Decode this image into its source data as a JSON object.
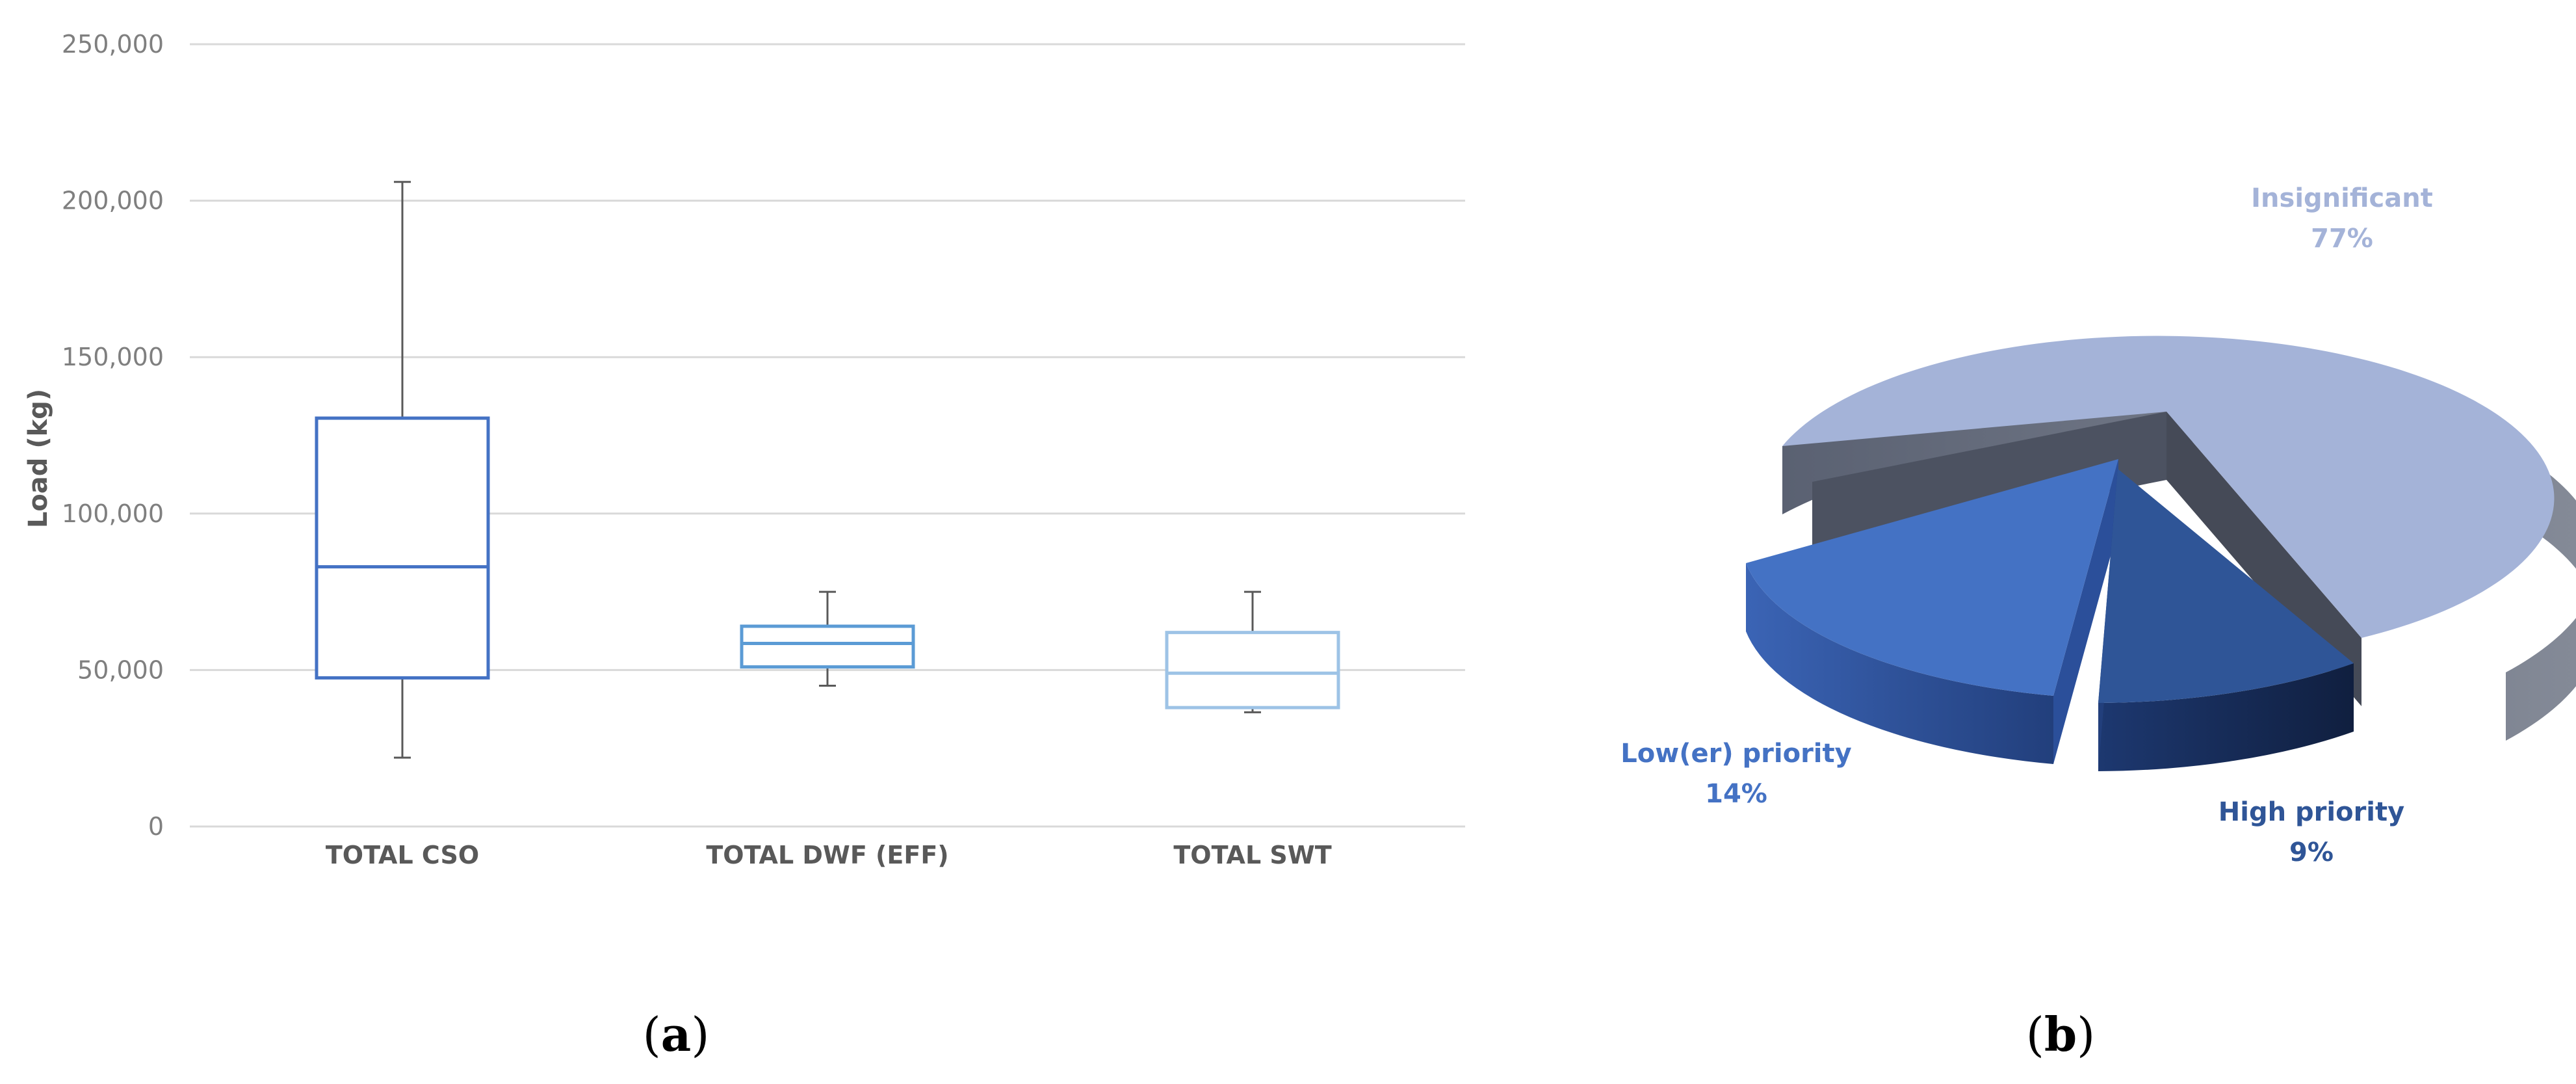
{
  "chart_data": [
    {
      "type": "box",
      "ylabel": "Load (kg)",
      "ylim": [
        0,
        250000
      ],
      "y_ticks": [
        0,
        50000,
        100000,
        150000,
        200000,
        250000
      ],
      "y_tick_labels": [
        "0",
        "50,000",
        "100,000",
        "150,000",
        "200,000",
        "250,000"
      ],
      "grid": true,
      "panel_label": "a",
      "categories": [
        "TOTAL CSO",
        "TOTAL DWF (EFF)",
        "TOTAL SWT"
      ],
      "boxes": [
        {
          "name": "TOTAL CSO",
          "min": 22000,
          "q1": 47500,
          "median": 83000,
          "q3": 130500,
          "max": 206000,
          "color": "#4472c4"
        },
        {
          "name": "TOTAL DWF (EFF)",
          "min": 45000,
          "q1": 51000,
          "median": 58500,
          "q3": 64000,
          "max": 75000,
          "color": "#5b9bd5"
        },
        {
          "name": "TOTAL SWT",
          "min": 36500,
          "q1": 38000,
          "median": 49000,
          "q3": 62000,
          "max": 75000,
          "color": "#9dc3e6"
        }
      ]
    },
    {
      "type": "pie",
      "panel_label": "b",
      "style": "3d-exploded",
      "slices": [
        {
          "label": "Insignificant",
          "value": 77,
          "value_label": "77%",
          "color": "#a4b3d8",
          "label_color": "#a4b3d8"
        },
        {
          "label": "High priority",
          "value": 9,
          "value_label": "9%",
          "color": "#2f5597",
          "label_color": "#2f5597"
        },
        {
          "label": "Low(er) priority",
          "value": 14,
          "value_label": "14%",
          "color": "#4472c4",
          "label_color": "#4472c4"
        }
      ]
    }
  ]
}
